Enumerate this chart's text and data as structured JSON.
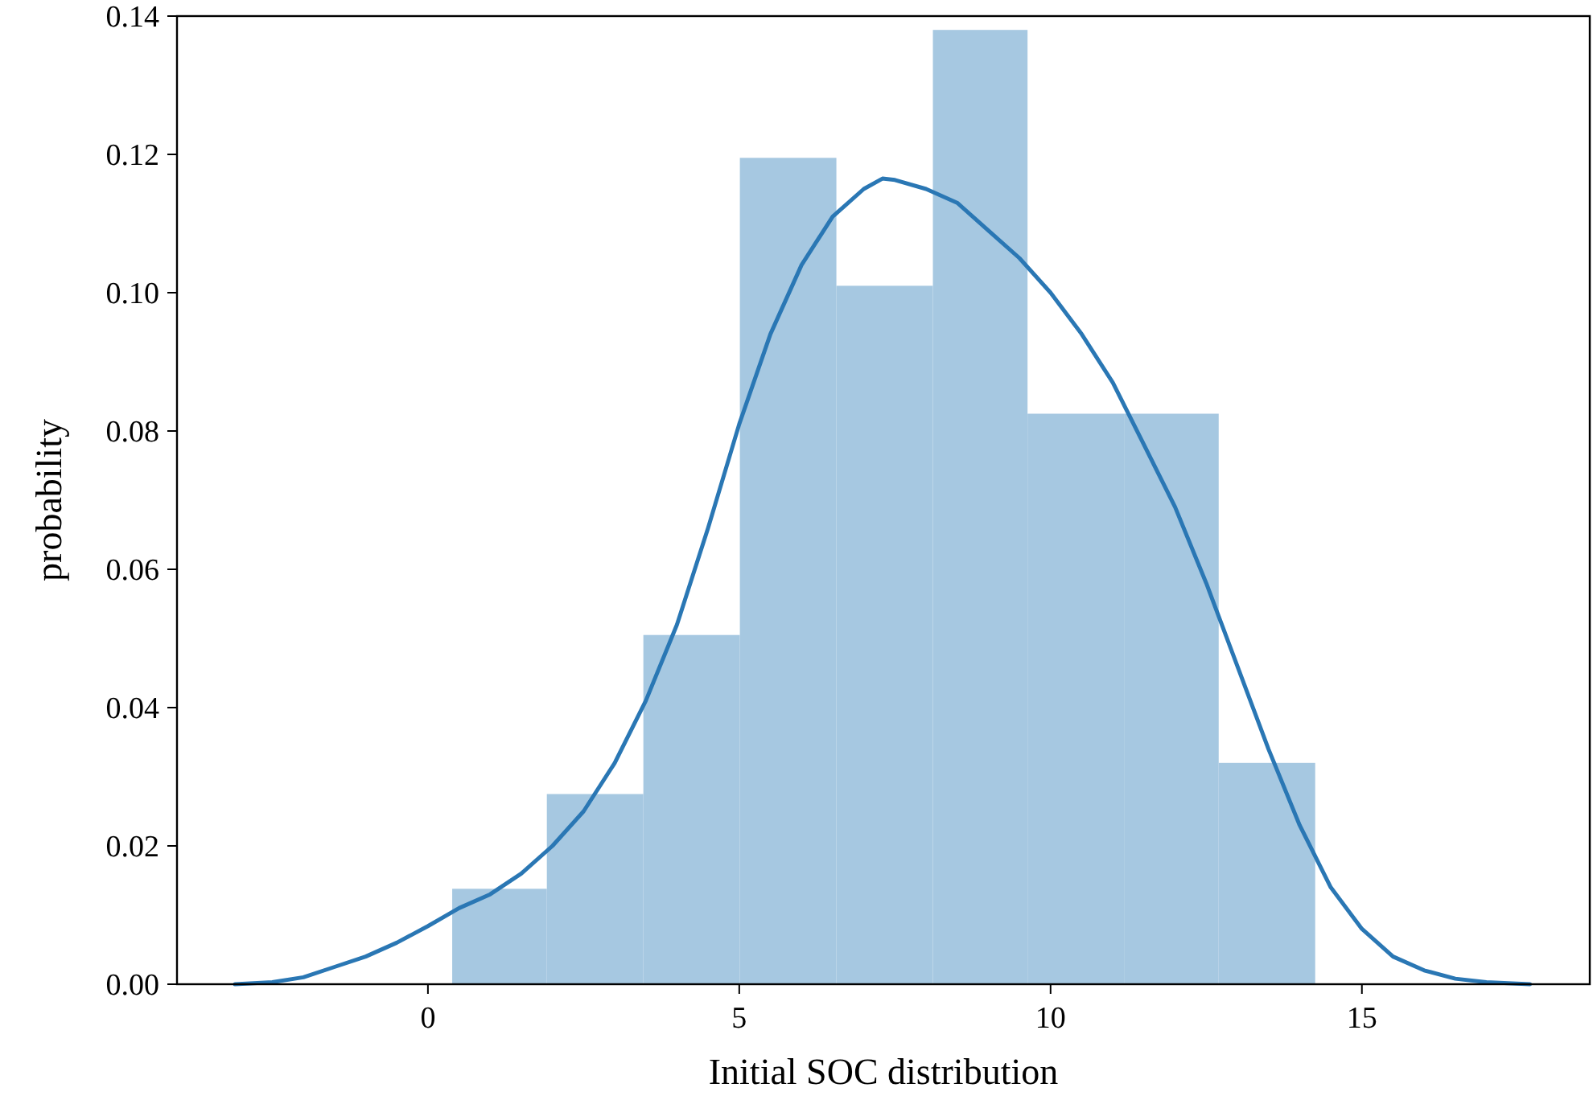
{
  "chart_data": {
    "type": "histogram",
    "xlabel": "Initial SOC distribution",
    "ylabel": "probability",
    "bins": [
      0.39,
      1.91,
      3.46,
      5.01,
      6.56,
      8.11,
      9.63,
      11.18,
      12.7,
      14.25
    ],
    "values": [
      0.0138,
      0.0275,
      0.0505,
      0.1195,
      0.101,
      0.138,
      0.0825,
      0.0825,
      0.032
    ],
    "color": "#a6c8e1",
    "series": [
      {
        "type": "line",
        "color": "#2a77b4",
        "x": [
          -3.1,
          -2.5,
          -2,
          -1.5,
          -1,
          -0.5,
          0,
          0.5,
          1,
          1.5,
          2,
          2.5,
          3,
          3.5,
          4,
          4.5,
          5,
          5.5,
          6,
          6.5,
          7,
          7.3,
          7.5,
          8,
          8.5,
          9,
          9.5,
          10,
          10.5,
          11,
          11.5,
          12,
          12.5,
          13,
          13.5,
          14,
          14.5,
          15,
          15.5,
          16,
          16.5,
          17,
          17.7
        ],
        "values": [
          0,
          0.0003,
          0.001,
          0.0025,
          0.004,
          0.006,
          0.0084,
          0.011,
          0.013,
          0.016,
          0.02,
          0.025,
          0.032,
          0.041,
          0.052,
          0.066,
          0.081,
          0.094,
          0.104,
          0.111,
          0.115,
          0.1165,
          0.1163,
          0.115,
          0.113,
          0.109,
          0.105,
          0.1,
          0.094,
          0.087,
          0.078,
          0.069,
          0.058,
          0.046,
          0.034,
          0.023,
          0.014,
          0.008,
          0.004,
          0.002,
          0.0008,
          0.0003,
          0
        ]
      }
    ],
    "xlim": [
      -4.03,
      18.66
    ],
    "ylim": [
      0,
      0.14
    ],
    "xticks": [
      0,
      5,
      10,
      15
    ],
    "yticks": [
      {
        "value": 0,
        "label": "0.00"
      },
      {
        "value": 0.02,
        "label": "0.02"
      },
      {
        "value": 0.04,
        "label": "0.04"
      },
      {
        "value": 0.06,
        "label": "0.06"
      },
      {
        "value": 0.08,
        "label": "0.08"
      },
      {
        "value": 0.1,
        "label": "0.10"
      },
      {
        "value": 0.12,
        "label": "0.12"
      },
      {
        "value": 0.14,
        "label": "0.14"
      }
    ],
    "grid": false
  }
}
